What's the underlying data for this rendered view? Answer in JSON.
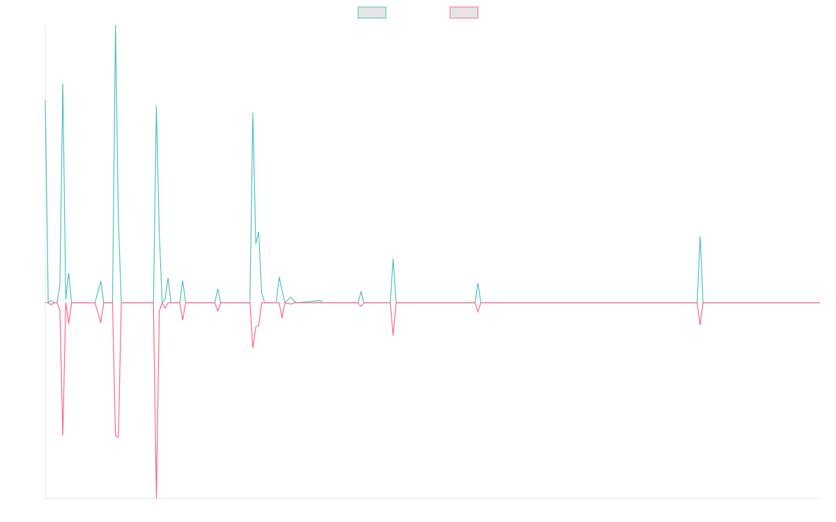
{
  "chart_data": {
    "type": "line",
    "x": [
      0,
      1,
      2,
      3,
      4,
      5,
      6,
      7,
      8,
      9,
      17,
      19,
      20,
      23,
      24,
      25,
      26,
      37,
      38,
      39,
      40,
      41,
      42,
      43,
      46,
      47,
      48,
      58,
      59,
      60,
      70,
      71,
      72,
      73,
      74,
      75,
      79,
      80,
      81,
      82,
      84,
      85,
      86,
      94,
      95,
      107,
      108,
      109,
      118,
      119,
      120,
      147,
      148,
      149,
      223,
      224,
      225,
      265
    ],
    "series": [
      {
        "color": "#4bc0c0",
        "values": [
          291,
          0,
          3,
          0,
          0,
          25,
          315,
          5,
          43,
          0,
          0,
          31,
          0,
          0,
          399,
          120,
          0,
          0,
          283,
          100,
          0,
          5,
          36,
          0,
          0,
          32,
          0,
          0,
          20,
          0,
          0,
          273,
          85,
          102,
          15,
          0,
          0,
          37,
          18,
          0,
          8,
          3,
          0,
          3,
          0,
          0,
          16,
          0,
          0,
          63,
          0,
          0,
          28,
          0,
          0,
          96,
          0,
          0
        ]
      },
      {
        "color": "#ff6384",
        "values": [
          0,
          0,
          -3,
          0,
          0,
          -10,
          -191,
          0,
          -30,
          0,
          0,
          -29,
          0,
          0,
          -191,
          -193,
          0,
          0,
          -281,
          -12,
          0,
          -8,
          0,
          0,
          0,
          -25,
          0,
          0,
          -12,
          0,
          0,
          -65,
          -35,
          -33,
          0,
          0,
          0,
          0,
          -22,
          0,
          -2,
          0,
          0,
          0,
          0,
          0,
          -5,
          0,
          0,
          -47,
          0,
          0,
          -13,
          0,
          0,
          -32,
          0,
          0
        ]
      }
    ],
    "xlim": [
      0,
      265
    ],
    "ylim": [
      -281,
      399
    ],
    "legend": "top"
  }
}
